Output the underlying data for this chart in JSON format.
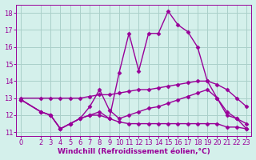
{
  "bg_color": "#d4f0eb",
  "grid_color": "#aacfc9",
  "line_color": "#990099",
  "marker": "D",
  "marker_size": 2.5,
  "line_width": 1.0,
  "xlabel": "Windchill (Refroidissement éolien,°C)",
  "xlabel_fontsize": 6.5,
  "tick_fontsize": 6.0,
  "ylim": [
    10.8,
    18.5
  ],
  "xlim": [
    -0.5,
    23.5
  ],
  "yticks": [
    11,
    12,
    13,
    14,
    15,
    16,
    17,
    18
  ],
  "xticks": [
    0,
    2,
    3,
    4,
    5,
    6,
    7,
    8,
    9,
    10,
    11,
    12,
    13,
    14,
    15,
    16,
    17,
    18,
    19,
    20,
    21,
    22,
    23
  ],
  "series": [
    {
      "x": [
        0,
        2,
        3,
        4,
        5,
        6,
        7,
        8,
        9,
        10,
        11,
        12,
        13,
        14,
        15,
        16,
        17,
        18,
        19,
        20,
        21,
        22,
        23
      ],
      "y": [
        12.9,
        12.2,
        12.0,
        11.2,
        11.5,
        11.8,
        12.0,
        12.2,
        11.8,
        14.5,
        16.8,
        14.6,
        16.8,
        16.8,
        18.1,
        17.3,
        16.9,
        16.0,
        14.0,
        13.0,
        12.0,
        11.8,
        11.2
      ]
    },
    {
      "x": [
        0,
        2,
        3,
        4,
        5,
        6,
        7,
        8,
        9,
        10,
        11,
        12,
        13,
        14,
        15,
        16,
        17,
        18,
        19,
        20,
        21,
        22,
        23
      ],
      "y": [
        13.0,
        13.0,
        13.0,
        13.0,
        13.0,
        13.0,
        13.1,
        13.2,
        13.2,
        13.3,
        13.4,
        13.5,
        13.5,
        13.6,
        13.7,
        13.8,
        13.9,
        14.0,
        14.0,
        13.8,
        13.5,
        13.0,
        12.5
      ]
    },
    {
      "x": [
        0,
        2,
        3,
        4,
        5,
        6,
        7,
        8,
        9,
        10,
        11,
        12,
        13,
        14,
        15,
        16,
        17,
        18,
        19,
        20,
        21,
        22,
        23
      ],
      "y": [
        12.9,
        12.2,
        12.0,
        11.2,
        11.5,
        11.8,
        12.0,
        12.0,
        11.8,
        11.6,
        11.5,
        11.5,
        11.5,
        11.5,
        11.5,
        11.5,
        11.5,
        11.5,
        11.5,
        11.5,
        11.3,
        11.3,
        11.2
      ]
    },
    {
      "x": [
        0,
        2,
        3,
        4,
        5,
        6,
        7,
        8,
        9,
        10,
        11,
        12,
        13,
        14,
        15,
        16,
        17,
        18,
        19,
        20,
        21,
        22,
        23
      ],
      "y": [
        12.9,
        12.2,
        12.0,
        11.2,
        11.5,
        11.8,
        12.5,
        13.5,
        12.3,
        11.8,
        12.0,
        12.2,
        12.4,
        12.5,
        12.7,
        12.9,
        13.1,
        13.3,
        13.5,
        13.0,
        12.2,
        11.8,
        11.5
      ]
    }
  ]
}
